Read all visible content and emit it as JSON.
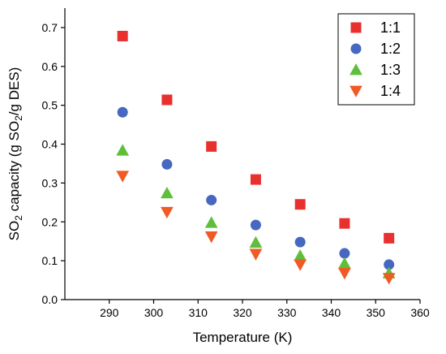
{
  "chart_data": {
    "type": "scatter",
    "xlabel": "Temperature (K)",
    "ylabel_parts": [
      "SO",
      "2",
      " capacity (g SO",
      "2",
      "/g DES)"
    ],
    "xlim": [
      280,
      360
    ],
    "ylim": [
      0.0,
      0.75
    ],
    "xticks": [
      290,
      300,
      310,
      320,
      330,
      340,
      350,
      360
    ],
    "yticks": [
      0.0,
      0.1,
      0.2,
      0.3,
      0.4,
      0.5,
      0.6,
      0.7
    ],
    "xtick_labels": [
      "290",
      "300",
      "310",
      "320",
      "330",
      "340",
      "350",
      "360"
    ],
    "ytick_labels": [
      "0.0",
      "0.1",
      "0.2",
      "0.3",
      "0.4",
      "0.5",
      "0.6",
      "0.7"
    ],
    "legend_position": "top-right",
    "grid": false,
    "x": [
      293,
      303,
      313,
      323,
      333,
      343,
      353
    ],
    "series": [
      {
        "name": "1:1",
        "marker": "square",
        "color": "#e8312f",
        "values": [
          0.678,
          0.514,
          0.394,
          0.309,
          0.245,
          0.196,
          0.158
        ]
      },
      {
        "name": "1:2",
        "marker": "circle",
        "color": "#4768c0",
        "values": [
          0.482,
          0.348,
          0.256,
          0.192,
          0.148,
          0.119,
          0.09
        ]
      },
      {
        "name": "1:3",
        "marker": "triangle-up",
        "color": "#5fbf3a",
        "values": [
          0.384,
          0.274,
          0.198,
          0.147,
          0.113,
          0.093,
          0.068
        ]
      },
      {
        "name": "1:4",
        "marker": "triangle-down",
        "color": "#f05a24",
        "values": [
          0.318,
          0.225,
          0.162,
          0.117,
          0.09,
          0.068,
          0.055
        ]
      }
    ]
  }
}
